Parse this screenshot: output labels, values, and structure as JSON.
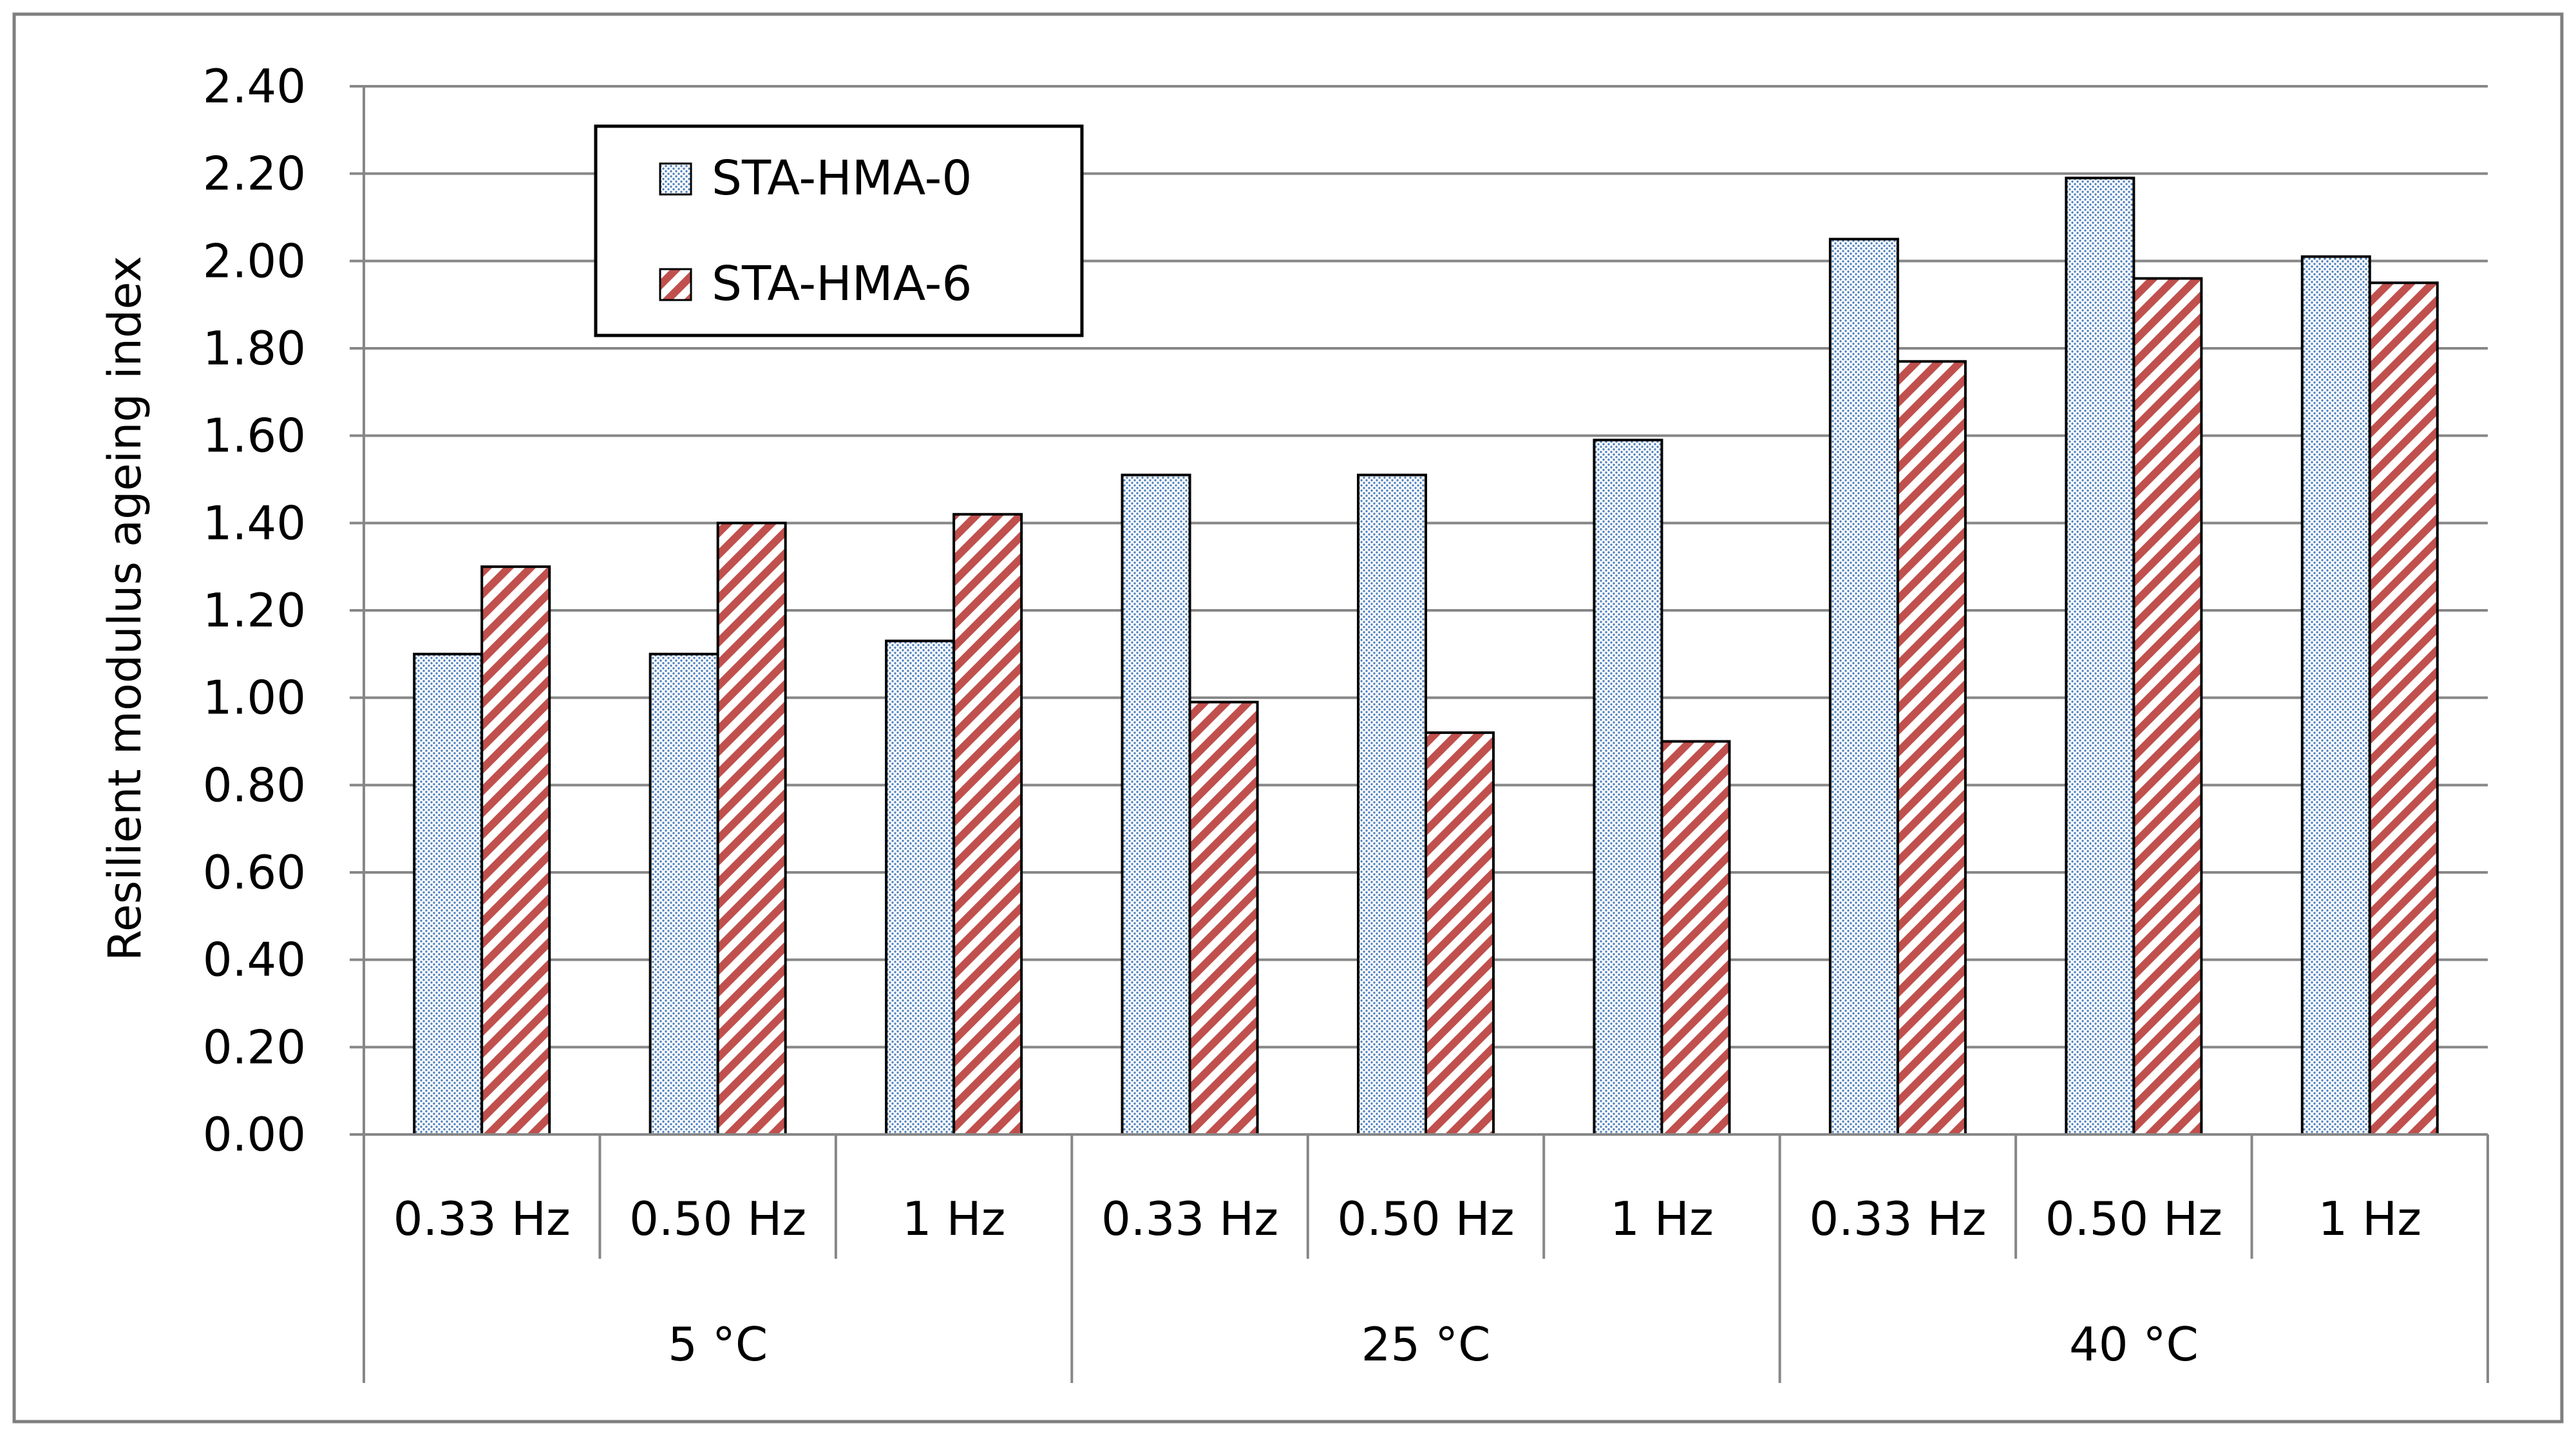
{
  "chart_data": {
    "type": "bar",
    "title": "",
    "ylabel": "Resilient modulus ageing index",
    "xlabel": "",
    "ylim": [
      0,
      2.4
    ],
    "ytick_step": 0.2,
    "ytick_labels": [
      "0.00",
      "0.20",
      "0.40",
      "0.60",
      "0.80",
      "1.00",
      "1.20",
      "1.40",
      "1.60",
      "1.80",
      "2.00",
      "2.20",
      "2.40"
    ],
    "grid": true,
    "legend_position": "top-left",
    "groups": [
      {
        "label": "5 °C",
        "categories": [
          "0.33 Hz",
          "0.50 Hz",
          "1 Hz"
        ]
      },
      {
        "label": "25 °C",
        "categories": [
          "0.33 Hz",
          "0.50 Hz",
          "1 Hz"
        ]
      },
      {
        "label": "40 °C",
        "categories": [
          "0.33 Hz",
          "0.50 Hz",
          "1 Hz"
        ]
      }
    ],
    "series": [
      {
        "name": "STA-HMA-0",
        "pattern": "dotted",
        "color": "#4f81bd",
        "values": [
          1.1,
          1.1,
          1.13,
          1.51,
          1.51,
          1.59,
          2.05,
          2.19,
          2.01
        ]
      },
      {
        "name": "STA-HMA-6",
        "pattern": "diagonal-stripes",
        "color": "#c0504d",
        "values": [
          1.3,
          1.4,
          1.42,
          0.99,
          0.92,
          0.9,
          1.77,
          1.96,
          1.95
        ]
      }
    ]
  }
}
